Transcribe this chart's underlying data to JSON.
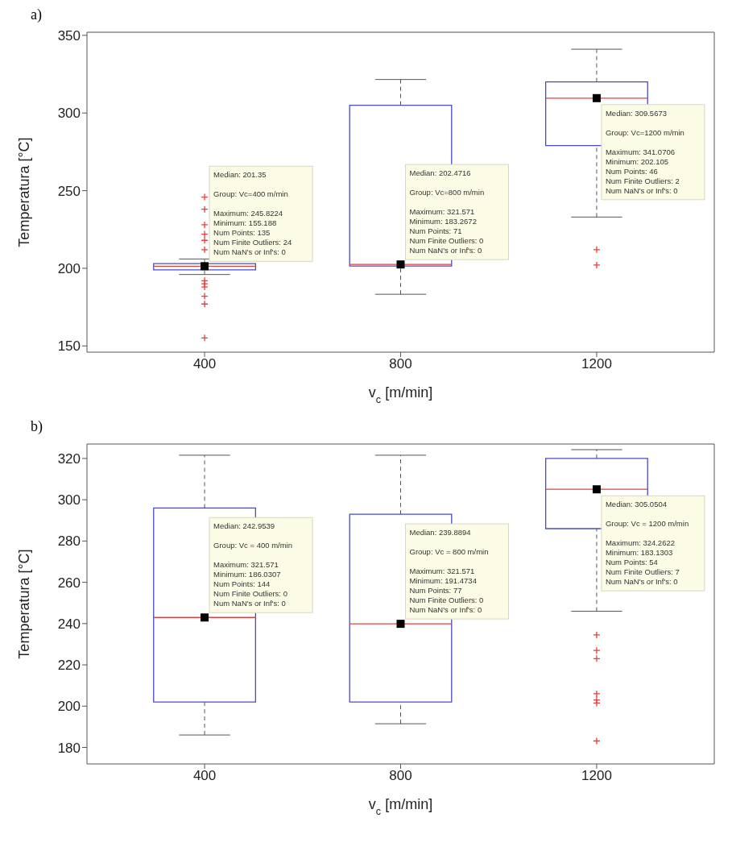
{
  "chart_data": [
    {
      "type": "box",
      "title": "a)",
      "xlabel": "v$_{c}$ [m/min]",
      "ylabel": "Temperatura [°C]",
      "categories": [
        "400",
        "800",
        "1200"
      ],
      "ylim": [
        146,
        352
      ],
      "yticks": [
        150,
        200,
        250,
        300,
        350
      ],
      "series": [
        {
          "color": "#4a4ac8",
          "boxes": [
            {
              "low": 196,
              "q1": 199,
              "median": 201.35,
              "q3": 203,
              "high": 206,
              "outliers": [
                245.8224,
                238,
                228,
                222,
                218,
                212,
                192,
                190,
                188,
                182,
                177,
                155.188
              ]
            },
            {
              "low": 183.2672,
              "q1": 201.5,
              "median": 202.4716,
              "q3": 305,
              "high": 321.571
            },
            {
              "low": 233,
              "q1": 279,
              "median": 309.5673,
              "q3": 320,
              "high": 341.0706,
              "outliers": [
                212,
                202.105
              ]
            }
          ]
        }
      ],
      "annotations": [
        "Median: 201.35",
        "Group: Vc=400 m/min",
        "Maximum: 245.8224",
        "Minimum: 155.188",
        "Num Points: 135",
        "Num Finite Outliers: 24",
        "Num NaN's or Inf's: 0",
        "Median: 202.4716",
        "Group: Vc=800 m/min",
        "Maximum: 321.571",
        "Minimum: 183.2672",
        "Num Points: 71",
        "Num Finite Outliers: 0",
        "Num NaN's or Inf's: 0",
        "Median: 309.5673",
        "Group: Vc=1200 m/min",
        "Maximum: 341.0706",
        "Minimum: 202.105",
        "Num Points: 46",
        "Num Finite Outliers: 2",
        "Num NaN's or Inf's: 0"
      ]
    },
    {
      "type": "box",
      "title": "b)",
      "xlabel": "v$_{c}$ [m/min]",
      "ylabel": "Temperatura [°C]",
      "categories": [
        "400",
        "800",
        "1200"
      ],
      "ylim": [
        172,
        327
      ],
      "yticks": [
        180,
        200,
        220,
        240,
        260,
        280,
        300,
        320
      ],
      "series": [
        {
          "color": "#4a4ac8",
          "boxes": [
            {
              "low": 186.0307,
              "q1": 202,
              "median": 242.9539,
              "q3": 296,
              "high": 321.571
            },
            {
              "low": 191.4734,
              "q1": 202,
              "median": 239.8894,
              "q3": 293,
              "high": 321.571
            },
            {
              "low": 246,
              "q1": 286,
              "median": 305.0504,
              "q3": 320,
              "high": 324.2622,
              "outliers": [
                234.5,
                227,
                223,
                206,
                203,
                201.5,
                183.1303
              ]
            }
          ]
        }
      ],
      "annotations": [
        "Median: 242.9539",
        "Group: Vc = 400 m/min",
        "Maximum: 321.571",
        "Minimum: 186.0307",
        "Num Points: 144",
        "Num Finite Outliers: 0",
        "Num NaN's or Inf's: 0",
        "Median: 239.8894",
        "Group: Vc = 800 m/min",
        "Maximum: 321.571",
        "Minimum: 191.4734",
        "Num Points: 77",
        "Num Finite Outliers: 0",
        "Num NaN's or Inf's: 0",
        "Median: 305.0504",
        "Group: Vc = 1200 m/min",
        "Maximum: 324.2622",
        "Minimum: 183.1303",
        "Num Points: 54",
        "Num Finite Outliers: 7",
        "Num NaN's or Inf's: 0"
      ]
    }
  ]
}
